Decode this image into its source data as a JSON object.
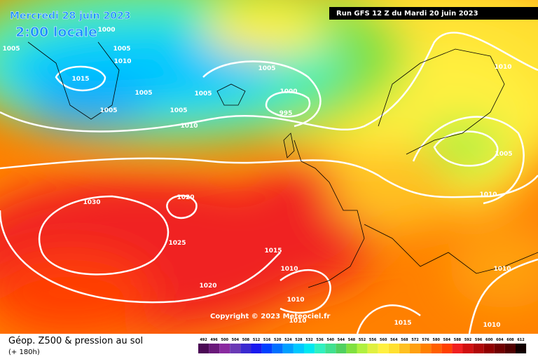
{
  "header": {
    "date": "Mercredi 28 juin 2023",
    "time": "2:00 locale",
    "run": "Run GFS 12 Z du Mardi 20 juin 2023"
  },
  "isobar_labels": [
    1000,
    1005,
    1005,
    1010,
    1015,
    1005,
    1005,
    1005,
    1005,
    1005,
    1000,
    995,
    1010,
    1010,
    1005,
    1010,
    1020,
    1030,
    1025,
    1015,
    1010,
    1020,
    1010,
    1010,
    1015,
    1010,
    1010
  ],
  "copyright": "Copyright © 2023 Meteociel.fr",
  "footer": {
    "title": "Géop. Z500 & pression au sol",
    "lead": "(+ 180h)"
  },
  "legend": {
    "values": [
      492,
      496,
      500,
      504,
      508,
      512,
      516,
      520,
      524,
      528,
      532,
      536,
      540,
      544,
      548,
      552,
      556,
      560,
      564,
      568,
      572,
      576,
      580,
      584,
      588,
      592,
      596,
      600,
      604,
      608,
      612
    ],
    "colors": [
      "#4b0a55",
      "#6a1a7a",
      "#8a2aa0",
      "#6a3ab5",
      "#3a2ad0",
      "#1a1aee",
      "#0040ff",
      "#0070ff",
      "#00a0ff",
      "#00c8ff",
      "#00e8f0",
      "#30f0c0",
      "#40e090",
      "#50d060",
      "#80e040",
      "#b0f040",
      "#e0f040",
      "#fff040",
      "#ffe030",
      "#ffc020",
      "#ffa010",
      "#ff8000",
      "#ff6000",
      "#ff4000",
      "#f02020",
      "#d01010",
      "#b00808",
      "#900000",
      "#700000",
      "#500000",
      "#100000"
    ]
  }
}
